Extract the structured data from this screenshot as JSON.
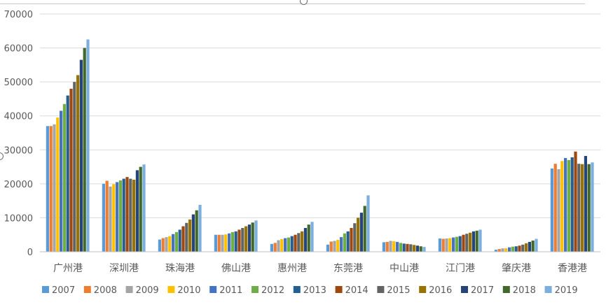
{
  "colors": {
    "grid": "#d9d9d9",
    "axis": "#bfbfbf",
    "text": "#595959",
    "series": [
      "#5b9bd5",
      "#ed7d31",
      "#a5a5a5",
      "#ffc000",
      "#4472c4",
      "#70ad47",
      "#255e91",
      "#9e480e",
      "#636363",
      "#997300",
      "#264478",
      "#43682b",
      "#7cafdd"
    ]
  },
  "chart_data": {
    "type": "bar",
    "categories": [
      "广州港",
      "深圳港",
      "珠海港",
      "佛山港",
      "惠州港",
      "东莞港",
      "中山港",
      "江门港",
      "肇庆港",
      "香港港"
    ],
    "ylim": [
      0,
      70000
    ],
    "yticks": [
      0,
      10000,
      20000,
      30000,
      40000,
      50000,
      60000,
      70000
    ],
    "grid": true,
    "legend_position": "bottom",
    "series": [
      {
        "name": "2007",
        "values": [
          37000,
          20000,
          3600,
          5000,
          2300,
          2100,
          2800,
          3900,
          600,
          24500
        ]
      },
      {
        "name": "2008",
        "values": [
          37000,
          20900,
          4000,
          5000,
          2600,
          3000,
          2900,
          3800,
          800,
          25900
        ]
      },
      {
        "name": "2009",
        "values": [
          37500,
          19200,
          4300,
          5000,
          3400,
          3200,
          3200,
          3900,
          1000,
          24300
        ]
      },
      {
        "name": "2010",
        "values": [
          39500,
          19900,
          4600,
          5100,
          3700,
          3500,
          3100,
          4000,
          1000,
          26700
        ]
      },
      {
        "name": "2011",
        "values": [
          41500,
          20500,
          5200,
          5400,
          4000,
          4300,
          2900,
          4200,
          1300,
          27600
        ]
      },
      {
        "name": "2012",
        "values": [
          43500,
          21000,
          5800,
          5800,
          4200,
          5400,
          2600,
          4400,
          1500,
          27000
        ]
      },
      {
        "name": "2013",
        "values": [
          46000,
          21500,
          6500,
          6000,
          4600,
          6000,
          2400,
          4600,
          1600,
          27800
        ]
      },
      {
        "name": "2014",
        "values": [
          48000,
          22000,
          7500,
          6500,
          5000,
          7000,
          2300,
          5000,
          1800,
          29500
        ]
      },
      {
        "name": "2015",
        "values": [
          50000,
          21500,
          8500,
          7000,
          5500,
          8400,
          2200,
          5300,
          2100,
          25900
        ]
      },
      {
        "name": "2016",
        "values": [
          52000,
          21200,
          9500,
          7500,
          6000,
          10000,
          2000,
          5600,
          2500,
          25800
        ]
      },
      {
        "name": "2017",
        "values": [
          56500,
          24000,
          11000,
          8000,
          7000,
          11500,
          1800,
          6000,
          2900,
          28200
        ]
      },
      {
        "name": "2018",
        "values": [
          60000,
          25000,
          12200,
          8600,
          8000,
          13500,
          1600,
          6200,
          3300,
          25800
        ]
      },
      {
        "name": "2019",
        "values": [
          62500,
          25700,
          13800,
          9200,
          8800,
          16600,
          1400,
          6500,
          3800,
          26300
        ]
      }
    ],
    "extra_series_note": ""
  }
}
